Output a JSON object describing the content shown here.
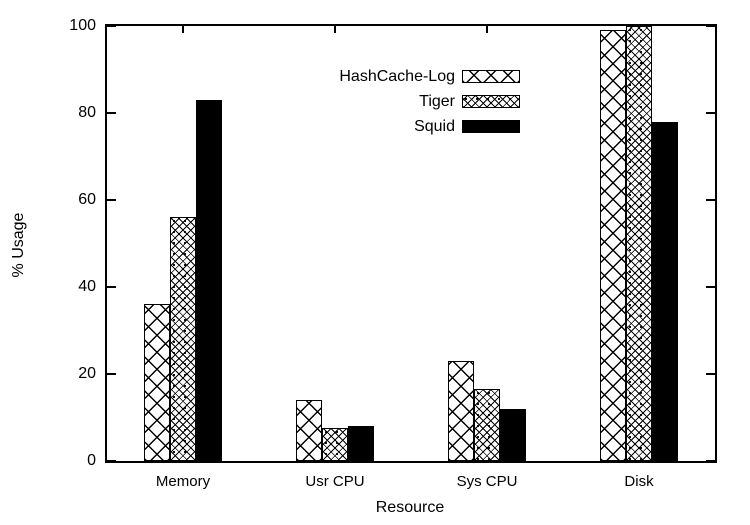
{
  "figure": {
    "background": "#ffffff",
    "foreground": "#000000"
  },
  "chart_data": {
    "type": "bar",
    "title": "",
    "xlabel": "Resource",
    "ylabel": "% Usage",
    "categories": [
      "Memory",
      "Usr CPU",
      "Sys CPU",
      "Disk"
    ],
    "series": [
      {
        "name": "HashCache-Log",
        "pattern": "crosshatch-large",
        "fill": "#ffffff",
        "stroke": "#000000",
        "values": [
          36,
          14,
          23,
          99
        ]
      },
      {
        "name": "Tiger",
        "pattern": "crosshatch-fine",
        "fill": "#ffffff",
        "stroke": "#000000",
        "values": [
          56,
          7.5,
          16.5,
          100
        ]
      },
      {
        "name": "Squid",
        "pattern": "solid",
        "fill": "#000000",
        "stroke": "#000000",
        "values": [
          83,
          8,
          12,
          78
        ]
      }
    ],
    "ylim": [
      0,
      100
    ],
    "yticks": [
      0,
      20,
      40,
      60,
      80,
      100
    ],
    "grid": false,
    "tick_style": "inward, mirrored on top and right axes",
    "legend_position": "inside top-center",
    "legend": [
      "HashCache-Log",
      "Tiger",
      "Squid"
    ]
  }
}
